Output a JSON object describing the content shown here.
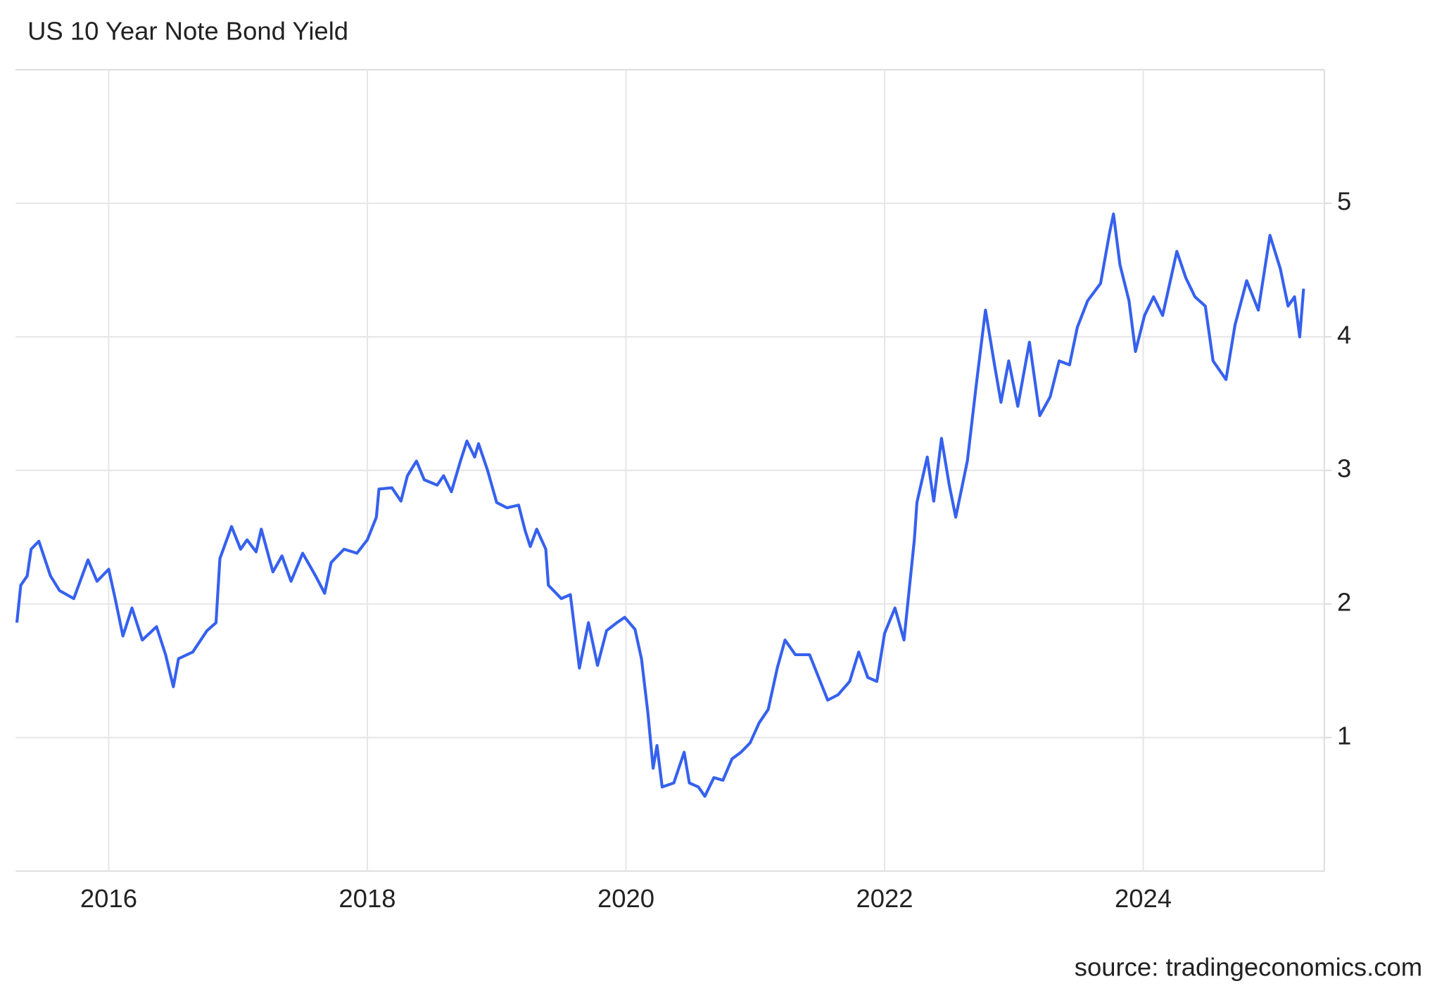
{
  "chart_data": {
    "type": "line",
    "title": "US 10 Year Note Bond Yield",
    "source": "source: tradingeconomics.com",
    "xlim": [
      2015.28,
      2025.4
    ],
    "xticks": [
      2016,
      2018,
      2020,
      2022,
      2024
    ],
    "ylim": [
      0,
      6
    ],
    "yticks": [
      1,
      2,
      3,
      4,
      5
    ],
    "grid": true,
    "series": [
      {
        "name": "US 10 Year Note Bond Yield",
        "color": "#3661ee",
        "x": [
          2015.29,
          2015.32,
          2015.37,
          2015.4,
          2015.46,
          2015.55,
          2015.62,
          2015.73,
          2015.84,
          2015.91,
          2016.0,
          2016.05,
          2016.11,
          2016.18,
          2016.26,
          2016.37,
          2016.44,
          2016.5,
          2016.54,
          2016.65,
          2016.76,
          2016.83,
          2016.86,
          2016.95,
          2017.02,
          2017.07,
          2017.14,
          2017.18,
          2017.27,
          2017.34,
          2017.41,
          2017.5,
          2017.6,
          2017.67,
          2017.72,
          2017.82,
          2017.92,
          2018.0,
          2018.07,
          2018.09,
          2018.19,
          2018.26,
          2018.31,
          2018.38,
          2018.44,
          2018.54,
          2018.59,
          2018.65,
          2018.72,
          2018.77,
          2018.83,
          2018.86,
          2018.93,
          2019.0,
          2019.08,
          2019.17,
          2019.22,
          2019.26,
          2019.31,
          2019.38,
          2019.4,
          2019.5,
          2019.57,
          2019.64,
          2019.71,
          2019.78,
          2019.85,
          2019.93,
          2019.99,
          2020.07,
          2020.12,
          2020.17,
          2020.21,
          2020.24,
          2020.28,
          2020.37,
          2020.45,
          2020.49,
          2020.56,
          2020.61,
          2020.68,
          2020.75,
          2020.82,
          2020.89,
          2020.96,
          2021.03,
          2021.1,
          2021.17,
          2021.23,
          2021.31,
          2021.42,
          2021.49,
          2021.56,
          2021.64,
          2021.73,
          2021.8,
          2021.87,
          2021.94,
          2022.0,
          2022.08,
          2022.15,
          2022.23,
          2022.25,
          2022.33,
          2022.38,
          2022.44,
          2022.5,
          2022.55,
          2022.64,
          2022.71,
          2022.78,
          2022.85,
          2022.9,
          2022.96,
          2023.03,
          2023.12,
          2023.2,
          2023.28,
          2023.35,
          2023.43,
          2023.49,
          2023.57,
          2023.67,
          2023.74,
          2023.77,
          2023.82,
          2023.89,
          2023.94,
          2024.01,
          2024.08,
          2024.15,
          2024.26,
          2024.33,
          2024.4,
          2024.48,
          2024.54,
          2024.64,
          2024.71,
          2024.8,
          2024.89,
          2024.98,
          2025.06,
          2025.12,
          2025.17,
          2025.21,
          2025.24
        ],
        "values": [
          1.86,
          2.14,
          2.21,
          2.41,
          2.47,
          2.21,
          2.1,
          2.04,
          2.33,
          2.17,
          2.26,
          2.04,
          1.76,
          1.97,
          1.73,
          1.83,
          1.62,
          1.38,
          1.59,
          1.64,
          1.8,
          1.86,
          2.34,
          2.58,
          2.41,
          2.48,
          2.39,
          2.56,
          2.24,
          2.36,
          2.17,
          2.38,
          2.21,
          2.08,
          2.31,
          2.41,
          2.38,
          2.48,
          2.65,
          2.86,
          2.87,
          2.77,
          2.96,
          3.07,
          2.93,
          2.89,
          2.96,
          2.84,
          3.07,
          3.22,
          3.1,
          3.2,
          3.0,
          2.76,
          2.72,
          2.74,
          2.55,
          2.43,
          2.56,
          2.41,
          2.14,
          2.04,
          2.07,
          1.52,
          1.86,
          1.54,
          1.8,
          1.86,
          1.9,
          1.81,
          1.59,
          1.18,
          0.77,
          0.94,
          0.63,
          0.66,
          0.89,
          0.66,
          0.63,
          0.56,
          0.7,
          0.68,
          0.84,
          0.89,
          0.96,
          1.11,
          1.21,
          1.52,
          1.73,
          1.62,
          1.62,
          1.45,
          1.28,
          1.32,
          1.42,
          1.64,
          1.45,
          1.42,
          1.78,
          1.97,
          1.73,
          2.48,
          2.76,
          3.1,
          2.77,
          3.24,
          2.89,
          2.65,
          3.07,
          3.65,
          4.2,
          3.79,
          3.51,
          3.82,
          3.48,
          3.96,
          3.41,
          3.55,
          3.82,
          3.79,
          4.07,
          4.27,
          4.4,
          4.78,
          4.92,
          4.54,
          4.27,
          3.89,
          4.16,
          4.3,
          4.16,
          4.64,
          4.44,
          4.3,
          4.23,
          3.82,
          3.68,
          4.09,
          4.42,
          4.2,
          4.76,
          4.51,
          4.23,
          4.3,
          4.0,
          4.36
        ]
      }
    ]
  }
}
